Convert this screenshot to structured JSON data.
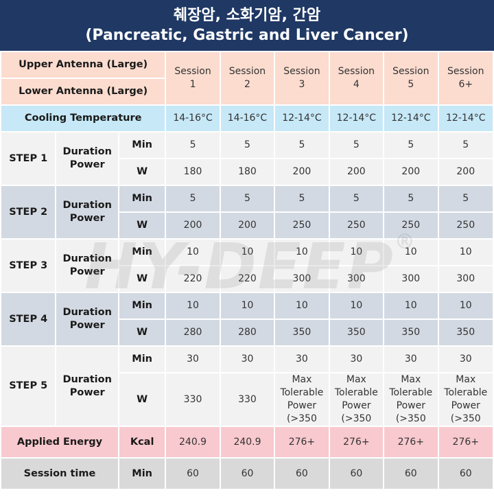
{
  "title": {
    "line1": "췌장암, 소화기암, 간암",
    "line2": "(Pancreatic, Gastric and Liver Cancer)"
  },
  "header": {
    "upper_antenna": "Upper Antenna (Large)",
    "lower_antenna": "Lower Antenna (Large)",
    "sessions": [
      {
        "label": "Session",
        "num": "1"
      },
      {
        "label": "Session",
        "num": "2"
      },
      {
        "label": "Session",
        "num": "3"
      },
      {
        "label": "Session",
        "num": "4"
      },
      {
        "label": "Session",
        "num": "5"
      },
      {
        "label": "Session",
        "num": "6+"
      }
    ]
  },
  "cooling": {
    "label": "Cooling Temperature",
    "values": [
      "14-16°C",
      "14-16°C",
      "12-14°C",
      "12-14°C",
      "12-14°C",
      "12-14°C"
    ]
  },
  "steps": [
    {
      "name": "STEP 1",
      "label_a": "Duration",
      "label_b": "Power",
      "unit_min": "Min",
      "unit_w": "W",
      "min": [
        "5",
        "5",
        "5",
        "5",
        "5",
        "5"
      ],
      "w": [
        "180",
        "180",
        "200",
        "200",
        "200",
        "200"
      ]
    },
    {
      "name": "STEP 2",
      "label_a": "Duration",
      "label_b": "Power",
      "unit_min": "Min",
      "unit_w": "W",
      "min": [
        "5",
        "5",
        "5",
        "5",
        "5",
        "5"
      ],
      "w": [
        "200",
        "200",
        "250",
        "250",
        "250",
        "250"
      ]
    },
    {
      "name": "STEP 3",
      "label_a": "Duration",
      "label_b": "Power",
      "unit_min": "Min",
      "unit_w": "W",
      "min": [
        "10",
        "10",
        "10",
        "10",
        "10",
        "10"
      ],
      "w": [
        "220",
        "220",
        "300",
        "300",
        "300",
        "300"
      ]
    },
    {
      "name": "STEP 4",
      "label_a": "Duration",
      "label_b": "Power",
      "unit_min": "Min",
      "unit_w": "W",
      "min": [
        "10",
        "10",
        "10",
        "10",
        "10",
        "10"
      ],
      "w": [
        "280",
        "280",
        "350",
        "350",
        "350",
        "350"
      ]
    },
    {
      "name": "STEP 5",
      "label_a": "Duration",
      "label_b": "Power",
      "unit_min": "Min",
      "unit_w": "W",
      "min": [
        "30",
        "30",
        "30",
        "30",
        "30",
        "30"
      ],
      "w": [
        "330",
        "330",
        "Max Tolerable Power (>350",
        "Max Tolerable Power (>350",
        "Max Tolerable Power (>350",
        "Max Tolerable Power (>350"
      ]
    }
  ],
  "applied_energy": {
    "label": "Applied Energy",
    "unit": "Kcal",
    "values": [
      "240.9",
      "240.9",
      "276+",
      "276+",
      "276+",
      "276+"
    ]
  },
  "session_time": {
    "label": "Session time",
    "unit": "Min",
    "values": [
      "60",
      "60",
      "60",
      "60",
      "60",
      "60"
    ]
  },
  "watermark": {
    "text": "HY-DEEP",
    "mark": "®"
  },
  "colors": {
    "title_bg": "#1f3864",
    "header_bg": "#fbdccf",
    "cooling_bg": "#c6e8f7",
    "step_light_bg": "#f2f2f2",
    "step_slate_bg": "#d3d9e2",
    "energy_bg": "#f8c9ce",
    "time_bg": "#d9d9d9"
  }
}
